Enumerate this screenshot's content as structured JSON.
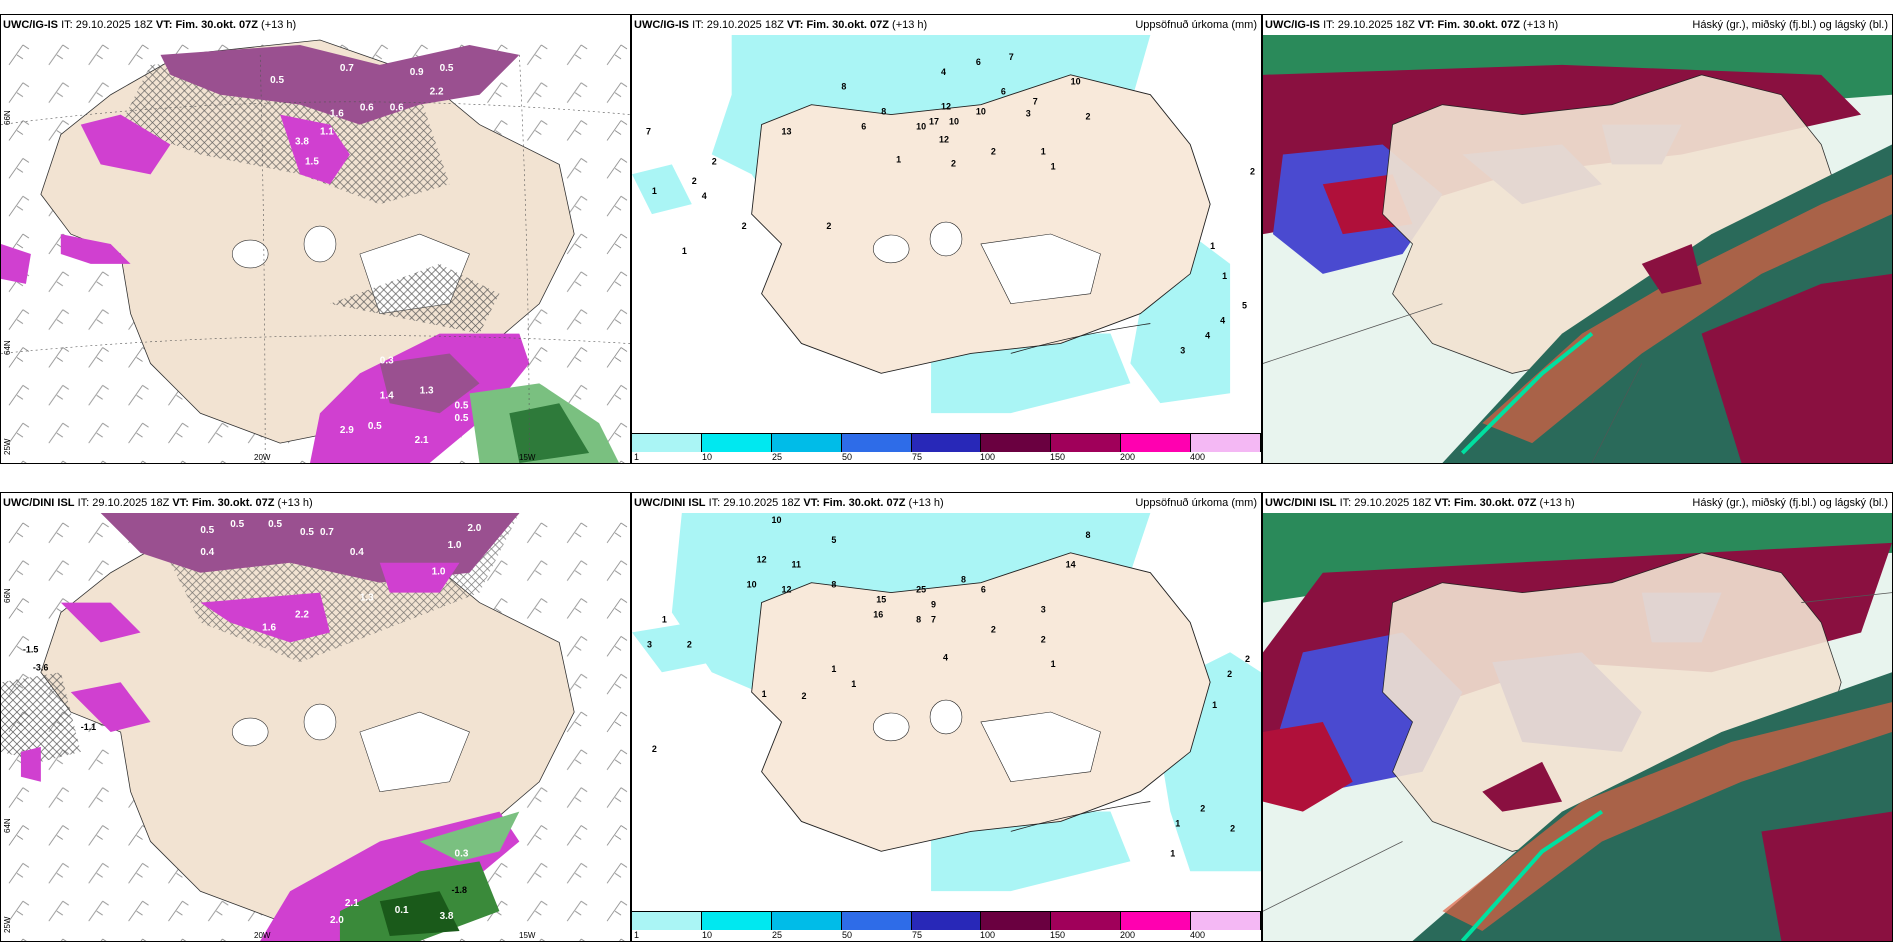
{
  "panels": {
    "p1": {
      "model": "UWC/IG-IS",
      "it_label": "IT:",
      "it": "29.10.2025 18Z",
      "vt_label": "VT:",
      "vt": "Fim. 30.okt. 07Z",
      "lead": "(+13 h)",
      "right_title": "",
      "axes": {
        "lat_top": "66N",
        "lat_bot": "64N",
        "lon_left": "25W",
        "lon_mid": "20W",
        "lon_right": "15W"
      },
      "values": [
        "0.5",
        "0.7",
        "0.9",
        "0.5",
        "2.2",
        "0.6",
        "0.6",
        "1.1",
        "3.8",
        "1.5",
        "0.3",
        "1.3",
        "1.4",
        "0.5",
        "0.5",
        "2.9",
        "0.5",
        "2.1",
        "1.6"
      ]
    },
    "p2": {
      "model": "UWC/IG-IS",
      "it_label": "IT:",
      "it": "29.10.2025 18Z",
      "vt_label": "VT:",
      "vt": "Fim. 30.okt. 07Z",
      "lead": "(+13 h)",
      "right_title": "Uppsöfnuð úrkoma (mm)",
      "values": [
        "4",
        "6",
        "8",
        "7",
        "6",
        "8",
        "10",
        "12",
        "17",
        "10",
        "12",
        "10",
        "6",
        "7",
        "3",
        "2",
        "1",
        "2",
        "1",
        "1",
        "2",
        "2",
        "1",
        "7",
        "2",
        "4",
        "1",
        "1",
        "5",
        "4",
        "3",
        "4",
        "2",
        "13",
        "1",
        "2",
        "2",
        "10"
      ]
    },
    "p3": {
      "model": "UWC/IG-IS",
      "it_label": "IT:",
      "it": "29.10.2025 18Z",
      "vt_label": "VT:",
      "vt": "Fim. 30.okt. 07Z",
      "lead": "(+13 h)",
      "right_title": "Háský (gr.), miðský (fj.bl.) og lágský (bl.)"
    },
    "p4": {
      "model": "UWC/DINI ISL",
      "it_label": "IT:",
      "it": "29.10.2025 18Z",
      "vt_label": "VT:",
      "vt": "Fim. 30.okt. 07Z",
      "lead": "(+13 h)",
      "right_title": "",
      "axes": {
        "lat_top": "66N",
        "lat_bot": "64N",
        "lon_left": "25W",
        "lon_mid": "20W",
        "lon_right": "15W"
      },
      "values": [
        "0.5",
        "0.5",
        "0.5",
        "0.5",
        "0.7",
        "2.0",
        "0.4",
        "0.4",
        "1.0",
        "1.0",
        "-1.5",
        "-3.6",
        "-1.1",
        "2.2",
        "1.6",
        "1.3",
        "0.3",
        "-1.8",
        "2.1",
        "2.0",
        "3.8",
        "0.1"
      ]
    },
    "p5": {
      "model": "UWC/DINI ISL",
      "it_label": "IT:",
      "it": "29.10.2025 18Z",
      "vt_label": "VT:",
      "vt": "Fim. 30.okt. 07Z",
      "lead": "(+13 h)",
      "right_title": "Uppsöfnuð úrkoma (mm)",
      "values": [
        "10",
        "5",
        "12",
        "11",
        "10",
        "12",
        "8",
        "15",
        "16",
        "25",
        "9",
        "8",
        "6",
        "8",
        "7",
        "2",
        "2",
        "1",
        "3",
        "1",
        "2",
        "1",
        "1",
        "2",
        "2",
        "3",
        "1",
        "14",
        "8",
        "4",
        "2",
        "2",
        "1",
        "1",
        "2",
        "1",
        "2"
      ]
    },
    "p6": {
      "model": "UWC/DINI ISL",
      "it_label": "IT:",
      "it": "29.10.2025 18Z",
      "vt_label": "VT:",
      "vt": "Fim. 30.okt. 07Z",
      "lead": "(+13 h)",
      "right_title": "Háský (gr.), miðský (fj.bl.) og lágský (bl.)"
    }
  },
  "legend": {
    "labels": [
      "1",
      "10",
      "25",
      "50",
      "75",
      "100",
      "150",
      "200",
      "400"
    ],
    "colors": [
      "#aaf5f5",
      "#00e8f0",
      "#00bce8",
      "#2e6ce8",
      "#2828b8",
      "#6a0040",
      "#a0005a",
      "#ff00b0",
      "#f4b8f4"
    ]
  },
  "colors": {
    "land": "#f2e3d2",
    "precip_light": "#aaf5f5",
    "ice": "#ffffff",
    "wet_bulb_pink": "#d040d0",
    "wet_bulb_dark": "#703070",
    "green": "#50b050",
    "cloud_high": "#2a6a5a",
    "cloud_mid": "#4a4ad0",
    "cloud_low": "#8a1040",
    "cloud_bright": "#00e0a0"
  }
}
